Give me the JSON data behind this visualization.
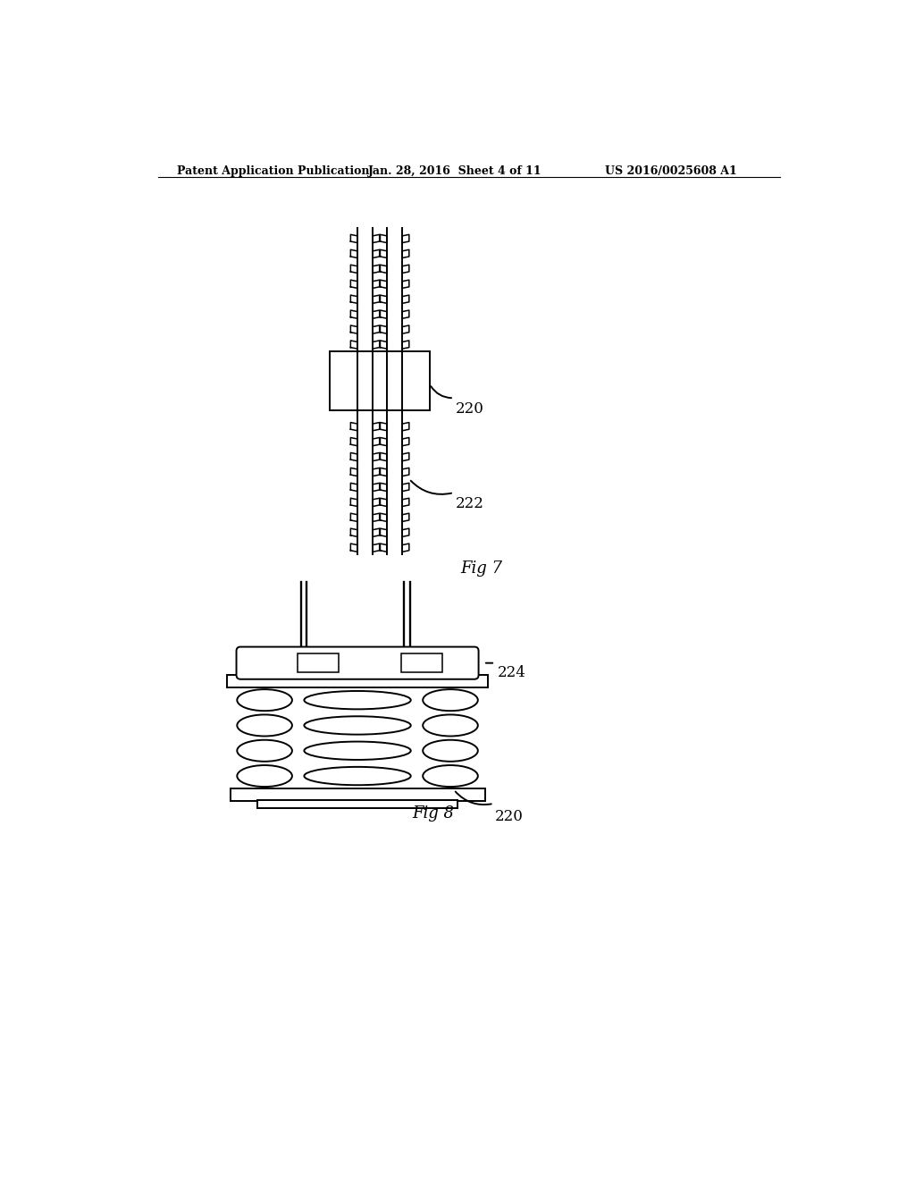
{
  "bg_color": "#ffffff",
  "header_left": "Patent Application Publication",
  "header_center": "Jan. 28, 2016  Sheet 4 of 11",
  "header_right": "US 2016/0025608 A1",
  "fig7_label": "Fig 7",
  "fig8_label": "Fig 8",
  "label_220_fig7": "220",
  "label_222_fig7": "222",
  "label_224_fig8": "224",
  "label_220_fig8": "220"
}
